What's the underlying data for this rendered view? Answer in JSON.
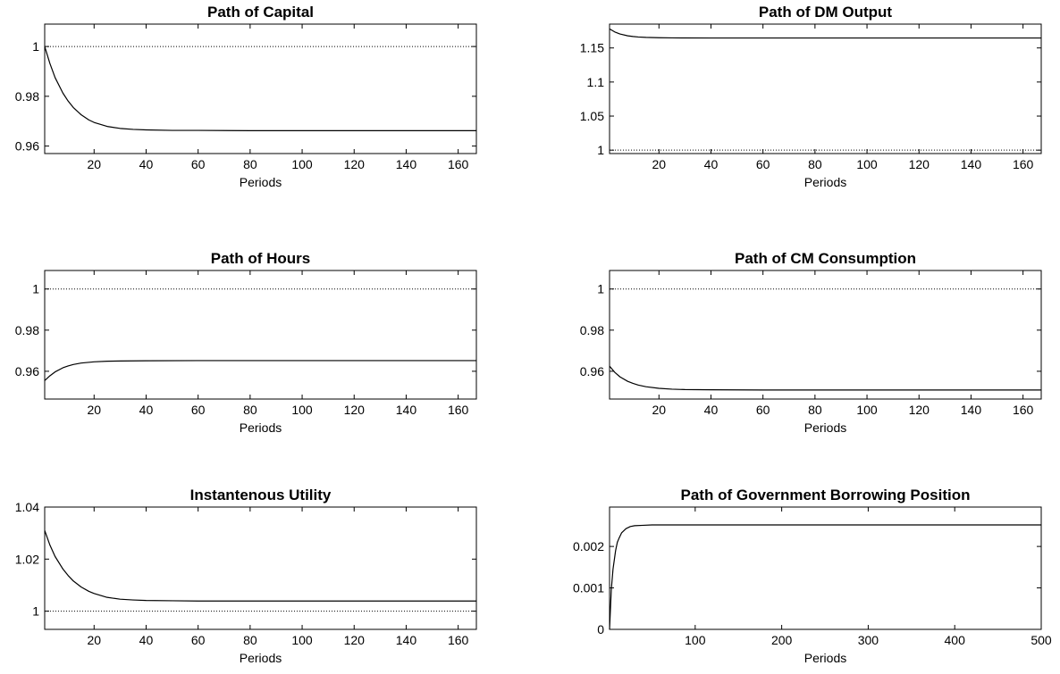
{
  "chart_data": [
    {
      "type": "line",
      "title": "Path of Capital",
      "xlabel": "Periods",
      "ylabel": "",
      "xlim": [
        1,
        167
      ],
      "ylim": [
        0.957,
        1.009
      ],
      "xticks": [
        20,
        40,
        60,
        80,
        100,
        120,
        140,
        160
      ],
      "yticks": [
        0.96,
        0.98,
        1
      ],
      "ytick_labels": [
        "0.96",
        "0.98",
        "1"
      ],
      "reference_line": 1,
      "series": [
        {
          "x": [
            1,
            3,
            5,
            8,
            10,
            12,
            15,
            18,
            20,
            25,
            30,
            35,
            40,
            50,
            60,
            80,
            100,
            120,
            140,
            160,
            167
          ],
          "y": [
            1.0,
            0.9932,
            0.9875,
            0.9813,
            0.9781,
            0.9755,
            0.9726,
            0.9705,
            0.9695,
            0.9679,
            0.9671,
            0.9667,
            0.9665,
            0.9663,
            0.9663,
            0.9662,
            0.9662,
            0.9662,
            0.9662,
            0.9662,
            0.9662
          ]
        }
      ]
    },
    {
      "type": "line",
      "title": "Path of DM Output",
      "xlabel": "Periods",
      "ylabel": "",
      "xlim": [
        1,
        167
      ],
      "ylim": [
        0.995,
        1.185
      ],
      "xticks": [
        20,
        40,
        60,
        80,
        100,
        120,
        140,
        160
      ],
      "yticks": [
        1,
        1.05,
        1.1,
        1.15
      ],
      "ytick_labels": [
        "1",
        "1.05",
        "1.1",
        "1.15"
      ],
      "reference_line": 1,
      "series": [
        {
          "x": [
            1,
            3,
            5,
            8,
            10,
            12,
            15,
            20,
            25,
            30,
            40,
            60,
            80,
            100,
            120,
            140,
            160,
            167
          ],
          "y": [
            1.178,
            1.1735,
            1.1705,
            1.1678,
            1.1668,
            1.1661,
            1.1655,
            1.165,
            1.1648,
            1.1647,
            1.1646,
            1.1646,
            1.1646,
            1.1646,
            1.1646,
            1.1646,
            1.1646,
            1.1646
          ]
        }
      ]
    },
    {
      "type": "line",
      "title": "Path of Hours",
      "xlabel": "Periods",
      "ylabel": "",
      "xlim": [
        1,
        167
      ],
      "ylim": [
        0.9465,
        1.009
      ],
      "xticks": [
        20,
        40,
        60,
        80,
        100,
        120,
        140,
        160
      ],
      "yticks": [
        0.96,
        0.98,
        1
      ],
      "ytick_labels": [
        "0.96",
        "0.98",
        "1"
      ],
      "reference_line": 1,
      "series": [
        {
          "x": [
            1,
            3,
            5,
            8,
            10,
            12,
            15,
            20,
            25,
            30,
            40,
            60,
            80,
            100,
            120,
            140,
            160,
            167
          ],
          "y": [
            0.9555,
            0.9578,
            0.9597,
            0.9617,
            0.9626,
            0.9633,
            0.964,
            0.9646,
            0.9649,
            0.965,
            0.9651,
            0.9652,
            0.9652,
            0.9652,
            0.9652,
            0.9652,
            0.9652,
            0.9652
          ]
        }
      ]
    },
    {
      "type": "line",
      "title": "Path of CM Consumption",
      "xlabel": "Periods",
      "ylabel": "",
      "xlim": [
        1,
        167
      ],
      "ylim": [
        0.9465,
        1.009
      ],
      "xticks": [
        20,
        40,
        60,
        80,
        100,
        120,
        140,
        160
      ],
      "yticks": [
        0.96,
        0.98,
        1
      ],
      "ytick_labels": [
        "0.96",
        "0.98",
        "1"
      ],
      "reference_line": 1,
      "series": [
        {
          "x": [
            1,
            3,
            5,
            8,
            10,
            12,
            15,
            20,
            25,
            30,
            40,
            60,
            80,
            100,
            120,
            140,
            160,
            167
          ],
          "y": [
            0.9625,
            0.9595,
            0.9573,
            0.9551,
            0.9541,
            0.9533,
            0.9525,
            0.9517,
            0.9513,
            0.9511,
            0.951,
            0.9509,
            0.9509,
            0.9509,
            0.9509,
            0.9509,
            0.9509,
            0.9509
          ]
        }
      ]
    },
    {
      "type": "line",
      "title": "Instantenous Utility",
      "xlabel": "Periods",
      "ylabel": "",
      "xlim": [
        1,
        167
      ],
      "ylim": [
        0.993,
        1.04
      ],
      "xticks": [
        20,
        40,
        60,
        80,
        100,
        120,
        140,
        160
      ],
      "yticks": [
        1,
        1.02,
        1.04
      ],
      "ytick_labels": [
        "1",
        "1.02",
        "1.04"
      ],
      "reference_line": 1,
      "series": [
        {
          "x": [
            1,
            3,
            5,
            8,
            10,
            12,
            15,
            18,
            20,
            25,
            30,
            35,
            40,
            50,
            60,
            80,
            100,
            120,
            140,
            160,
            167
          ],
          "y": [
            1.031,
            1.0254,
            1.021,
            1.0162,
            1.0137,
            1.0116,
            1.0093,
            1.0076,
            1.0068,
            1.0053,
            1.0046,
            1.0043,
            1.0041,
            1.004,
            1.0039,
            1.0039,
            1.0039,
            1.0039,
            1.0039,
            1.0039,
            1.0039
          ]
        }
      ]
    },
    {
      "type": "line",
      "title": "Path of Government Borrowing Position",
      "xlabel": "Periods",
      "ylabel": "",
      "xlim": [
        1,
        500
      ],
      "ylim": [
        0,
        0.00295
      ],
      "xticks": [
        100,
        200,
        300,
        400,
        500
      ],
      "yticks": [
        0,
        0.001,
        0.002
      ],
      "ytick_labels": [
        "0",
        "0.001",
        "0.002"
      ],
      "reference_line": null,
      "series": [
        {
          "x": [
            1,
            3,
            5,
            8,
            10,
            12,
            15,
            20,
            25,
            30,
            40,
            50,
            100,
            200,
            300,
            400,
            500
          ],
          "y": [
            0.0,
            0.00095,
            0.00145,
            0.0019,
            0.0021,
            0.0022,
            0.00233,
            0.00243,
            0.00248,
            0.0025,
            0.00251,
            0.00252,
            0.00252,
            0.00252,
            0.00252,
            0.00252,
            0.00252
          ]
        }
      ]
    }
  ]
}
